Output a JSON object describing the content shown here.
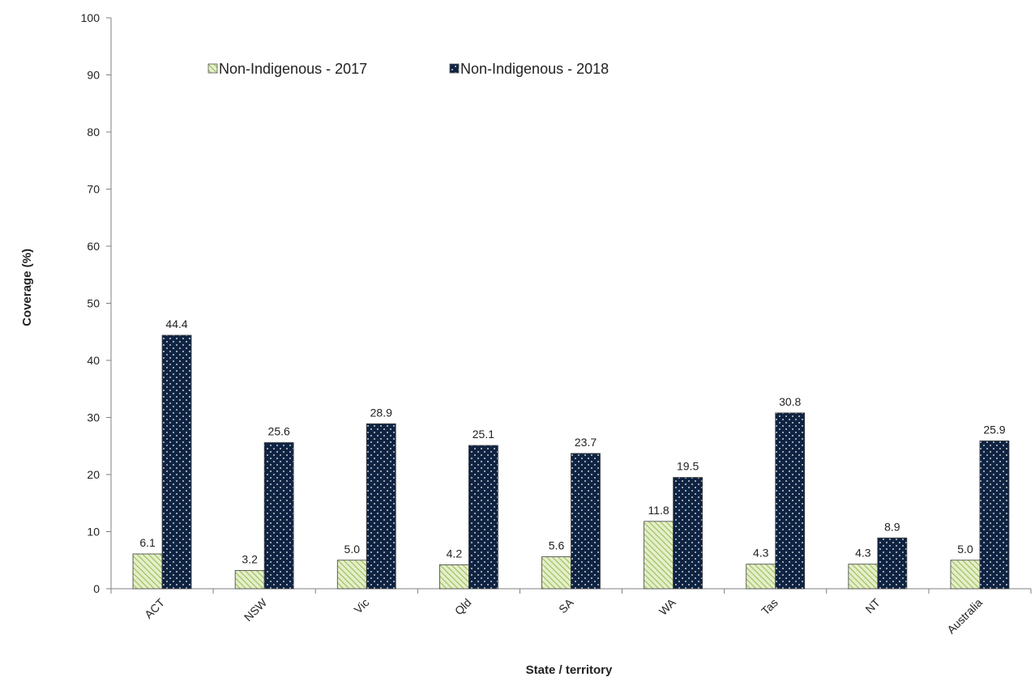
{
  "chart_data": {
    "type": "bar",
    "xlabel": "State / territory",
    "ylabel": "Coverage (%)",
    "ylim": [
      0,
      100
    ],
    "yticks": [
      0,
      10,
      20,
      30,
      40,
      50,
      60,
      70,
      80,
      90,
      100
    ],
    "categories": [
      "ACT",
      "NSW",
      "Vic",
      "Qld",
      "SA",
      "WA",
      "Tas",
      "NT",
      "Australia"
    ],
    "series": [
      {
        "name": "Non-Indigenous - 2017",
        "values": [
          6.1,
          3.2,
          5.0,
          4.2,
          5.6,
          11.8,
          4.3,
          4.3,
          5.0
        ],
        "color": "#9bbb59",
        "pattern": "diagonal-hatch"
      },
      {
        "name": "Non-Indigenous - 2018",
        "values": [
          44.4,
          25.6,
          28.9,
          25.1,
          23.7,
          19.5,
          30.8,
          8.9,
          25.9
        ],
        "color": "#0f2342",
        "pattern": "white-dots"
      }
    ],
    "data_labels": [
      [
        "6.1",
        "3.2",
        "5.0",
        "4.2",
        "5.6",
        "11.8",
        "4.3",
        "4.3",
        "5.0"
      ],
      [
        "44.4",
        "25.6",
        "28.9",
        "25.1",
        "23.7",
        "19.5",
        "30.8",
        "8.9",
        "25.9"
      ]
    ],
    "legend_position": "top",
    "grid": false
  }
}
